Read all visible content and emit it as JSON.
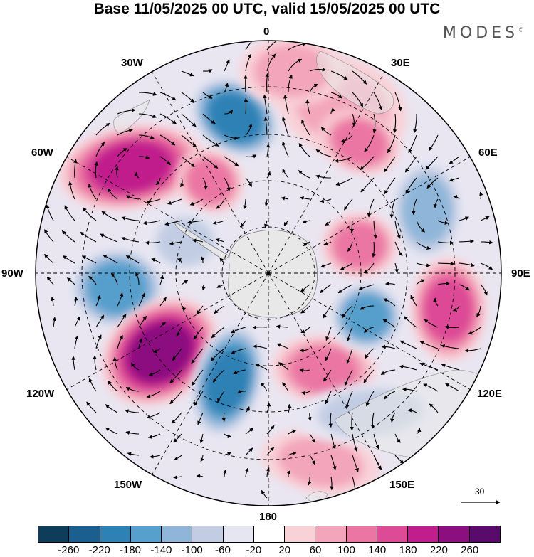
{
  "title": "Base 11/05/2025 00 UTC, valid 15/05/2025 00 UTC",
  "brand": "MODES",
  "brand_mark": "©",
  "longitude_labels": {
    "lon_0": "0",
    "lon_30e": "30E",
    "lon_60e": "60E",
    "lon_90e": "90E",
    "lon_120e": "120E",
    "lon_150e": "150E",
    "lon_180": "180",
    "lon_150w": "150W",
    "lon_120w": "120W",
    "lon_90w": "90W",
    "lon_60w": "60W",
    "lon_30w": "30W"
  },
  "reference_vector": {
    "label": "30"
  },
  "colorbar": {
    "colors": [
      "#0e3d5c",
      "#1a5f8f",
      "#2e81b5",
      "#579fcc",
      "#8fb6d9",
      "#c2cde4",
      "#e6e6f2",
      "#ffffff",
      "#f9d2d8",
      "#f3a6bb",
      "#eb76a3",
      "#dd4a96",
      "#c01e8c",
      "#8c0f80",
      "#5a0a6c"
    ],
    "ticks": [
      "-260",
      "-220",
      "-180",
      "-140",
      "-100",
      "-60",
      "-20",
      "20",
      "60",
      "100",
      "140",
      "180",
      "220",
      "260"
    ]
  },
  "map_data": {
    "projection": "south polar stereographic",
    "field": "anomaly",
    "anomaly_centers": [
      {
        "lon": -8,
        "value": -200
      },
      {
        "lon": -45,
        "value": 180
      },
      {
        "lon": 20,
        "value": 90
      },
      {
        "lon": 60,
        "value": -120
      },
      {
        "lon": -95,
        "value": -160
      },
      {
        "lon": -130,
        "value": 220
      },
      {
        "lon": -170,
        "value": -200
      },
      {
        "lon": 95,
        "value": 150
      },
      {
        "lon": 125,
        "value": 130
      },
      {
        "lon": 110,
        "value": -140
      },
      {
        "lon": 150,
        "value": 80
      },
      {
        "lon": 130,
        "value": -60
      },
      {
        "lon": 60,
        "value": 100
      }
    ]
  }
}
